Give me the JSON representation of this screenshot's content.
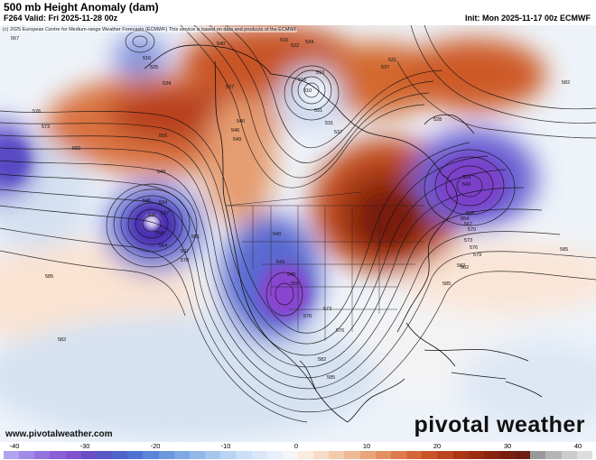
{
  "header": {
    "title": "500 mb Height Anomaly (dam)",
    "valid": "F264 Valid: Fri 2025-11-28 00z",
    "init": "Init: Mon 2025-11-17 00z ECMWF"
  },
  "map": {
    "copyright": "(c) 2025 European Centre for Medium-range Weather Forecasts (ECMWF) This service is based on data and products of the ECMWF",
    "website": "www.pivotalweather.com",
    "logo": "pivotal weather",
    "contour_labels": [
      {
        "text": "567"
      },
      {
        "text": "516"
      },
      {
        "text": "525"
      },
      {
        "text": "534"
      },
      {
        "text": "540"
      },
      {
        "text": "516"
      },
      {
        "text": "522"
      },
      {
        "text": "534"
      },
      {
        "text": "537"
      },
      {
        "text": "540"
      },
      {
        "text": "546"
      },
      {
        "text": "549"
      },
      {
        "text": "531"
      },
      {
        "text": "510"
      },
      {
        "text": "516"
      },
      {
        "text": "519"
      },
      {
        "text": "531"
      },
      {
        "text": "537"
      },
      {
        "text": "537"
      },
      {
        "text": "531"
      },
      {
        "text": "582"
      },
      {
        "text": "576"
      },
      {
        "text": "573"
      },
      {
        "text": "582"
      },
      {
        "text": "555"
      },
      {
        "text": "549"
      },
      {
        "text": "531"
      },
      {
        "text": "537"
      },
      {
        "text": "534"
      },
      {
        "text": "546"
      },
      {
        "text": "558"
      },
      {
        "text": "561"
      },
      {
        "text": "564"
      },
      {
        "text": "567"
      },
      {
        "text": "570"
      },
      {
        "text": "585"
      },
      {
        "text": "540"
      },
      {
        "text": "543"
      },
      {
        "text": "549"
      },
      {
        "text": "555"
      },
      {
        "text": "570"
      },
      {
        "text": "573"
      },
      {
        "text": "576"
      },
      {
        "text": "582"
      },
      {
        "text": "585"
      },
      {
        "text": "585"
      },
      {
        "text": "582"
      },
      {
        "text": "582"
      },
      {
        "text": "528"
      },
      {
        "text": "534"
      },
      {
        "text": "543"
      },
      {
        "text": "555"
      },
      {
        "text": "564"
      },
      {
        "text": "567"
      },
      {
        "text": "570"
      },
      {
        "text": "573"
      },
      {
        "text": "576"
      },
      {
        "text": "579"
      },
      {
        "text": "582"
      },
      {
        "text": "585"
      }
    ]
  },
  "colorbar": {
    "ticks": [
      "-40",
      "-30",
      "-20",
      "-10",
      "0",
      "10",
      "20",
      "30",
      "40"
    ],
    "colors": [
      "#b0a3f0",
      "#a08ae8",
      "#9473de",
      "#8a5fd4",
      "#8052cc",
      "#6a4fc4",
      "#5a58c6",
      "#4f63cb",
      "#4f72d2",
      "#5a85d8",
      "#6b97de",
      "#7ea9e4",
      "#92b8e9",
      "#a6c6ee",
      "#b9d3f2",
      "#cadef5",
      "#d9e7f8",
      "#e6effa",
      "#f5f5f5",
      "#f9ebe0",
      "#f6dcc8",
      "#f2cbae",
      "#eeb994",
      "#e9a57a",
      "#e39062",
      "#dc7b4c",
      "#d36638",
      "#c85328",
      "#bb431d",
      "#ac3614",
      "#9c2c10",
      "#8a240e",
      "#7a1f10",
      "#6d1d14",
      "#9a9a9a",
      "#b5b5b5",
      "#cccccc",
      "#dddddd"
    ]
  }
}
